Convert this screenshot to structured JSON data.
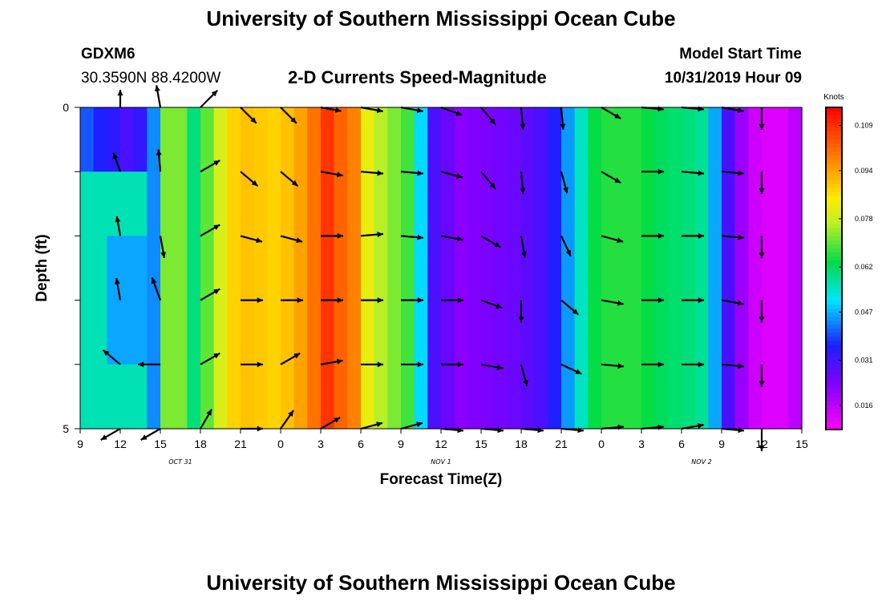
{
  "header": {
    "title": "University of Southern Mississippi Ocean Cube",
    "station_id": "GDXM6",
    "coordinates": "30.3590N 88.4200W",
    "plot_title": "2-D Currents Speed-Magnitude",
    "model_start_label": "Model Start Time",
    "model_start_value": "10/31/2019 Hour 09"
  },
  "footer": {
    "title": "University of Southern Mississippi Ocean Cube"
  },
  "chart_data": {
    "type": "heatmap",
    "title": "2-D Currents Speed-Magnitude",
    "xlabel": "Forecast Time(Z)",
    "ylabel": "Depth (ft)",
    "x_tick_labels": [
      "9",
      "12",
      "15",
      "18",
      "21",
      "0",
      "3",
      "6",
      "9",
      "12",
      "15",
      "18",
      "21",
      "0",
      "3",
      "6",
      "9",
      "12",
      "15"
    ],
    "date_labels": [
      {
        "text": "OCT 31",
        "hour_index": 2.5
      },
      {
        "text": "NOV 1",
        "hour_index": 9
      },
      {
        "text": "NOV 2",
        "hour_index": 15.5
      }
    ],
    "y_tick_labels": [
      "0",
      "5"
    ],
    "ylim": [
      0,
      5
    ],
    "x_range_hours": [
      0,
      54
    ],
    "colorbar": {
      "unit": "Knots",
      "min": 0.008,
      "max": 0.115,
      "tick_labels": [
        "0.109",
        "0.094",
        "0.078",
        "0.062",
        "0.047",
        "0.031",
        "0.016"
      ],
      "tick_values": [
        0.109,
        0.094,
        0.078,
        0.062,
        0.047,
        0.031,
        0.016
      ]
    },
    "speed_by_hour": [
      0.04,
      0.036,
      0.034,
      0.03,
      0.033,
      0.044,
      0.052,
      0.058,
      0.06,
      0.07,
      0.08,
      0.088,
      0.09,
      0.089,
      0.088,
      0.09,
      0.094,
      0.1,
      0.108,
      0.102,
      0.098,
      0.082,
      0.076,
      0.072,
      0.068,
      0.05,
      0.03,
      0.026,
      0.022,
      0.023,
      0.024,
      0.025,
      0.026,
      0.028,
      0.03,
      0.036,
      0.045,
      0.055,
      0.064,
      0.066,
      0.066,
      0.066,
      0.064,
      0.062,
      0.061,
      0.06,
      0.058,
      0.046,
      0.03,
      0.02,
      0.014,
      0.012,
      0.012,
      0.016,
      0.024
    ],
    "surface_anomalies": [
      {
        "hours": [
          0,
          4
        ],
        "layers": [
          1,
          2,
          3,
          4
        ],
        "speed": 0.056
      },
      {
        "hours": [
          2,
          4
        ],
        "layers": [
          2,
          3
        ],
        "speed": 0.046
      },
      {
        "hours": [
          6,
          7
        ],
        "layers": [
          0,
          1,
          2,
          3,
          4,
          5
        ],
        "speed": 0.072
      }
    ],
    "vector_columns_hours": [
      3,
      6,
      9,
      12,
      15,
      18,
      21,
      24,
      27,
      30,
      33,
      36,
      39,
      42,
      45,
      48,
      51
    ],
    "vector_layers_depth": [
      0,
      1,
      2,
      3,
      4,
      5
    ],
    "vectors": [
      [
        [
          -90,
          22
        ],
        [
          -110,
          25
        ],
        [
          -100,
          25
        ],
        [
          -100,
          28
        ],
        [
          -140,
          28
        ],
        [
          150,
          28
        ]
      ],
      [
        [
          260,
          28
        ],
        [
          265,
          28
        ],
        [
          80,
          28
        ],
        [
          -110,
          30
        ],
        [
          180,
          28
        ],
        [
          150,
          28
        ]
      ],
      [
        [
          -45,
          30
        ],
        [
          -30,
          28
        ],
        [
          -30,
          28
        ],
        [
          -30,
          28
        ],
        [
          -30,
          28
        ],
        [
          -60,
          28
        ]
      ],
      [
        [
          45,
          28
        ],
        [
          40,
          28
        ],
        [
          15,
          28
        ],
        [
          0,
          28
        ],
        [
          0,
          28
        ],
        [
          0,
          28
        ]
      ],
      [
        [
          45,
          28
        ],
        [
          40,
          28
        ],
        [
          15,
          28
        ],
        [
          0,
          28
        ],
        [
          -30,
          28
        ],
        [
          -55,
          28
        ]
      ],
      [
        [
          10,
          26
        ],
        [
          10,
          28
        ],
        [
          0,
          28
        ],
        [
          0,
          28
        ],
        [
          -10,
          28
        ],
        [
          -30,
          28
        ]
      ],
      [
        [
          10,
          28
        ],
        [
          5,
          28
        ],
        [
          -5,
          28
        ],
        [
          0,
          28
        ],
        [
          0,
          28
        ],
        [
          -15,
          28
        ]
      ],
      [
        [
          10,
          28
        ],
        [
          5,
          28
        ],
        [
          5,
          28
        ],
        [
          0,
          28
        ],
        [
          0,
          28
        ],
        [
          -15,
          28
        ]
      ],
      [
        [
          20,
          28
        ],
        [
          15,
          28
        ],
        [
          10,
          28
        ],
        [
          0,
          28
        ],
        [
          0,
          28
        ],
        [
          5,
          28
        ]
      ],
      [
        [
          50,
          28
        ],
        [
          50,
          28
        ],
        [
          30,
          28
        ],
        [
          20,
          28
        ],
        [
          10,
          28
        ],
        [
          5,
          28
        ]
      ],
      [
        [
          85,
          28
        ],
        [
          85,
          28
        ],
        [
          80,
          28
        ],
        [
          90,
          28
        ],
        [
          75,
          28
        ],
        [
          5,
          28
        ]
      ],
      [
        [
          85,
          28
        ],
        [
          75,
          28
        ],
        [
          65,
          28
        ],
        [
          40,
          28
        ],
        [
          25,
          28
        ],
        [
          5,
          28
        ]
      ],
      [
        [
          30,
          28
        ],
        [
          30,
          28
        ],
        [
          15,
          28
        ],
        [
          10,
          28
        ],
        [
          5,
          28
        ],
        [
          -5,
          28
        ]
      ],
      [
        [
          5,
          28
        ],
        [
          0,
          28
        ],
        [
          0,
          28
        ],
        [
          0,
          28
        ],
        [
          0,
          28
        ],
        [
          -5,
          28
        ]
      ],
      [
        [
          5,
          28
        ],
        [
          5,
          28
        ],
        [
          0,
          28
        ],
        [
          0,
          28
        ],
        [
          0,
          28
        ],
        [
          -10,
          28
        ]
      ],
      [
        [
          10,
          28
        ],
        [
          5,
          28
        ],
        [
          5,
          28
        ],
        [
          10,
          28
        ],
        [
          5,
          28
        ],
        [
          5,
          28
        ]
      ],
      [
        [
          90,
          28
        ],
        [
          90,
          28
        ],
        [
          90,
          28
        ],
        [
          90,
          28
        ],
        [
          90,
          28
        ],
        [
          90,
          28
        ]
      ]
    ]
  }
}
